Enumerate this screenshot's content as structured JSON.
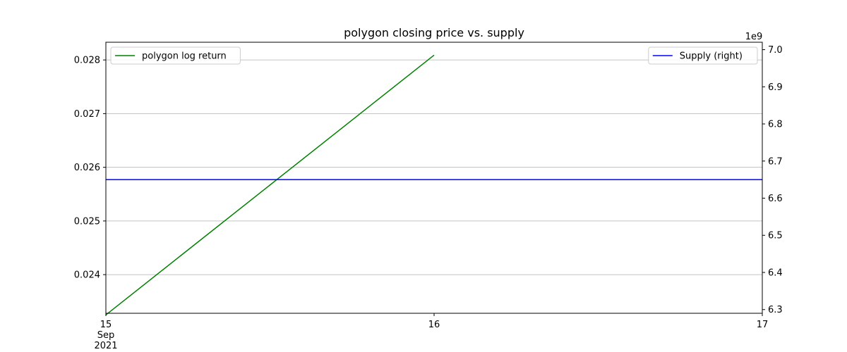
{
  "chart_data": {
    "type": "line",
    "title": "polygon closing price vs. supply",
    "xlabel": "",
    "x_ticks": [
      {
        "value": "2021-09-15",
        "lines": [
          "15",
          "Sep",
          "2021"
        ]
      },
      {
        "value": "2021-09-16",
        "lines": [
          "16"
        ]
      },
      {
        "value": "2021-09-17",
        "lines": [
          "17"
        ]
      }
    ],
    "xlim": [
      "2021-09-15",
      "2021-09-17"
    ],
    "left_axis": {
      "ylabel": "",
      "ylim": [
        0.02328,
        0.02833
      ],
      "ticks": [
        0.024,
        0.025,
        0.026,
        0.027,
        0.028
      ],
      "tick_labels": [
        "0.024",
        "0.025",
        "0.026",
        "0.027",
        "0.028"
      ],
      "grid": true
    },
    "right_axis": {
      "ylabel": "",
      "offset_label": "1e9",
      "ylim": [
        6.29,
        7.02
      ],
      "ticks": [
        6.3,
        6.4,
        6.5,
        6.6,
        6.7,
        6.8,
        6.9,
        7.0
      ],
      "tick_labels": [
        "6.3",
        "6.4",
        "6.5",
        "6.6",
        "6.7",
        "6.8",
        "6.9",
        "7.0"
      ]
    },
    "series": [
      {
        "name": "polygon log return",
        "axis": "left",
        "color": "#008000",
        "x": [
          "2021-09-15",
          "2021-09-16"
        ],
        "y": [
          0.02325,
          0.02809
        ]
      },
      {
        "name": "Supply (right)",
        "axis": "right",
        "color": "#0000ff",
        "x": [
          "2021-09-15",
          "2021-09-17"
        ],
        "y": [
          6.65,
          6.65
        ]
      }
    ],
    "legends": [
      {
        "placement": "upper-left",
        "entries": [
          "polygon log return"
        ]
      },
      {
        "placement": "upper-right",
        "entries": [
          "Supply (right)"
        ]
      }
    ]
  }
}
